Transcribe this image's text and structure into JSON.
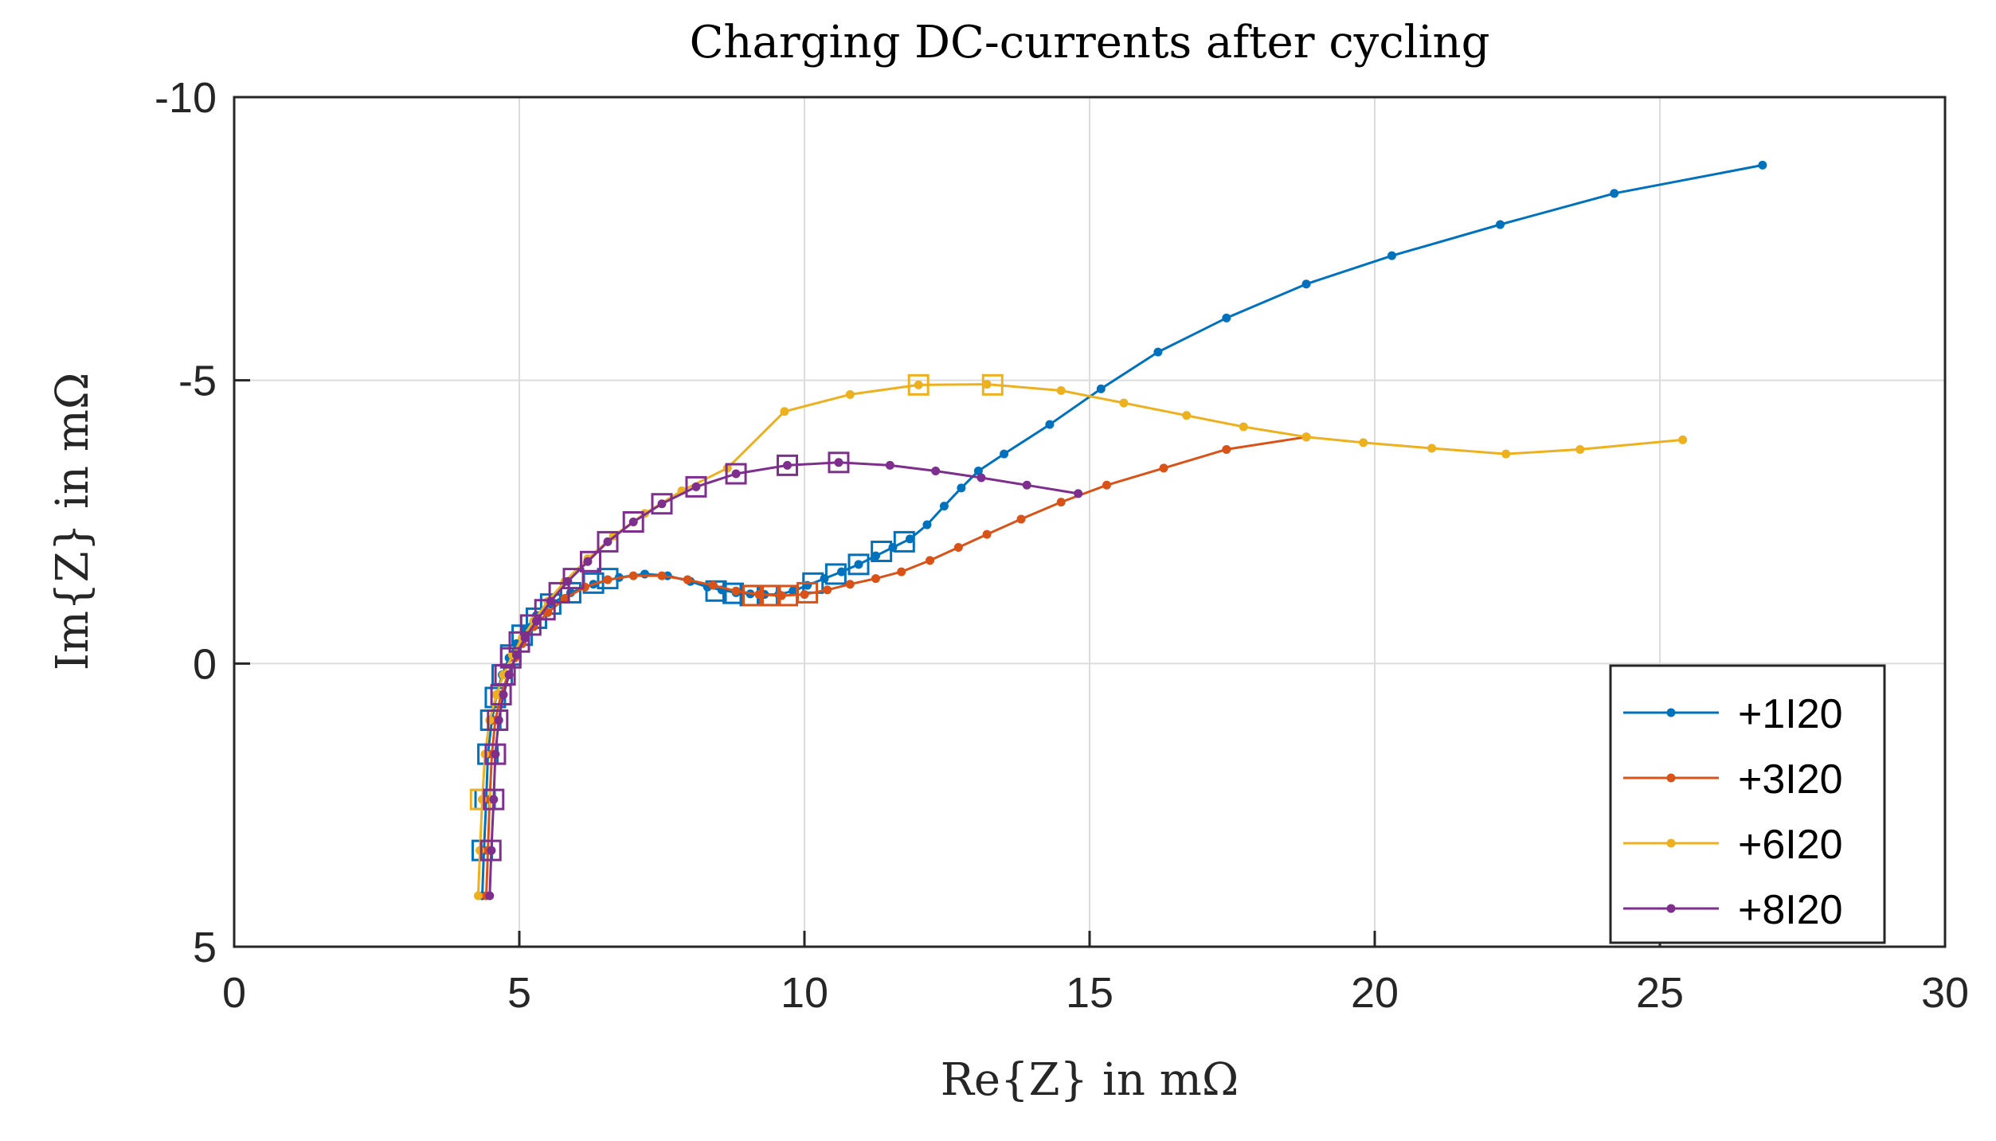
{
  "chart_data": {
    "type": "line",
    "title": "Charging DC-currents after cycling",
    "xlabel": "Re{Z} in mΩ",
    "ylabel": "Im{Z} in mΩ",
    "xlim": [
      0,
      30
    ],
    "ylim": [
      5,
      -10
    ],
    "y_reversed": true,
    "xticks": [
      0,
      5,
      10,
      15,
      20,
      25,
      30
    ],
    "yticks": [
      -10,
      -5,
      0,
      5
    ],
    "xtick_labels": [
      "0",
      "5",
      "10",
      "15",
      "20",
      "25",
      "30"
    ],
    "ytick_labels": [
      "-10",
      "-5",
      "0",
      "5"
    ],
    "grid": true,
    "legend_position": "bottom-right",
    "series": [
      {
        "name": "+1I20",
        "color": "#0072BD",
        "points": [
          [
            4.35,
            4.1
          ],
          [
            4.38,
            3.3
          ],
          [
            4.42,
            2.4
          ],
          [
            4.45,
            1.6
          ],
          [
            4.52,
            1.0
          ],
          [
            4.6,
            0.55
          ],
          [
            4.7,
            0.2
          ],
          [
            4.82,
            -0.1
          ],
          [
            4.95,
            -0.35
          ],
          [
            5.1,
            -0.6
          ],
          [
            5.3,
            -0.85
          ],
          [
            5.55,
            -1.05
          ],
          [
            5.9,
            -1.25
          ],
          [
            6.3,
            -1.4
          ],
          [
            6.75,
            -1.52
          ],
          [
            7.2,
            -1.58
          ],
          [
            7.6,
            -1.55
          ],
          [
            8.0,
            -1.45
          ],
          [
            8.3,
            -1.35
          ],
          [
            8.55,
            -1.3
          ],
          [
            8.8,
            -1.25
          ],
          [
            9.05,
            -1.23
          ],
          [
            9.3,
            -1.22
          ],
          [
            9.55,
            -1.22
          ],
          [
            9.8,
            -1.28
          ],
          [
            10.05,
            -1.38
          ],
          [
            10.35,
            -1.5
          ],
          [
            10.65,
            -1.62
          ],
          [
            10.95,
            -1.75
          ],
          [
            11.25,
            -1.9
          ],
          [
            11.55,
            -2.05
          ],
          [
            11.85,
            -2.2
          ],
          [
            12.15,
            -2.45
          ],
          [
            12.45,
            -2.78
          ],
          [
            12.75,
            -3.1
          ],
          [
            13.05,
            -3.4
          ],
          [
            13.5,
            -3.7
          ],
          [
            14.3,
            -4.22
          ],
          [
            15.2,
            -4.85
          ],
          [
            16.2,
            -5.5
          ],
          [
            17.4,
            -6.1
          ],
          [
            18.8,
            -6.7
          ],
          [
            20.3,
            -7.2
          ],
          [
            22.2,
            -7.75
          ],
          [
            24.2,
            -8.3
          ],
          [
            26.8,
            -8.8
          ]
        ],
        "markers": [
          [
            4.35,
            3.3
          ],
          [
            4.4,
            2.4
          ],
          [
            4.45,
            1.6
          ],
          [
            4.5,
            1.0
          ],
          [
            4.58,
            0.6
          ],
          [
            4.7,
            0.2
          ],
          [
            4.85,
            -0.15
          ],
          [
            5.05,
            -0.5
          ],
          [
            5.3,
            -0.8
          ],
          [
            5.55,
            -1.05
          ],
          [
            5.9,
            -1.25
          ],
          [
            6.3,
            -1.42
          ],
          [
            6.55,
            -1.5
          ],
          [
            8.45,
            -1.28
          ],
          [
            8.75,
            -1.24
          ],
          [
            9.05,
            -1.2
          ],
          [
            9.35,
            -1.2
          ],
          [
            10.15,
            -1.42
          ],
          [
            10.55,
            -1.58
          ],
          [
            10.95,
            -1.75
          ],
          [
            11.35,
            -1.98
          ],
          [
            11.75,
            -2.15
          ]
        ]
      },
      {
        "name": "+3I20",
        "color": "#D95319",
        "points": [
          [
            4.42,
            4.1
          ],
          [
            4.45,
            3.3
          ],
          [
            4.48,
            2.4
          ],
          [
            4.52,
            1.6
          ],
          [
            4.58,
            1.0
          ],
          [
            4.68,
            0.55
          ],
          [
            4.8,
            0.2
          ],
          [
            4.92,
            -0.1
          ],
          [
            5.05,
            -0.35
          ],
          [
            5.25,
            -0.65
          ],
          [
            5.5,
            -0.9
          ],
          [
            5.8,
            -1.15
          ],
          [
            6.15,
            -1.35
          ],
          [
            6.55,
            -1.48
          ],
          [
            7.0,
            -1.55
          ],
          [
            7.5,
            -1.55
          ],
          [
            7.95,
            -1.48
          ],
          [
            8.4,
            -1.38
          ],
          [
            8.8,
            -1.28
          ],
          [
            9.2,
            -1.22
          ],
          [
            9.6,
            -1.2
          ],
          [
            10.0,
            -1.22
          ],
          [
            10.4,
            -1.3
          ],
          [
            10.8,
            -1.4
          ],
          [
            11.25,
            -1.5
          ],
          [
            11.7,
            -1.62
          ],
          [
            12.2,
            -1.82
          ],
          [
            12.7,
            -2.05
          ],
          [
            13.2,
            -2.28
          ],
          [
            13.8,
            -2.55
          ],
          [
            14.5,
            -2.85
          ],
          [
            15.3,
            -3.15
          ],
          [
            16.3,
            -3.45
          ],
          [
            17.4,
            -3.78
          ],
          [
            18.8,
            -4.0
          ]
        ],
        "markers": [
          [
            9.1,
            -1.2
          ],
          [
            9.4,
            -1.2
          ],
          [
            9.7,
            -1.2
          ],
          [
            10.05,
            -1.25
          ]
        ]
      },
      {
        "name": "+6I20",
        "color": "#EDB120",
        "points": [
          [
            4.28,
            4.1
          ],
          [
            4.31,
            3.3
          ],
          [
            4.35,
            2.4
          ],
          [
            4.4,
            1.6
          ],
          [
            4.48,
            1.0
          ],
          [
            4.6,
            0.55
          ],
          [
            4.72,
            0.2
          ],
          [
            4.88,
            -0.15
          ],
          [
            5.05,
            -0.45
          ],
          [
            5.25,
            -0.75
          ],
          [
            5.5,
            -1.1
          ],
          [
            5.8,
            -1.45
          ],
          [
            6.2,
            -1.85
          ],
          [
            6.65,
            -2.25
          ],
          [
            7.2,
            -2.65
          ],
          [
            7.85,
            -3.05
          ],
          [
            8.65,
            -3.45
          ],
          [
            9.65,
            -4.45
          ],
          [
            10.8,
            -4.75
          ],
          [
            12.0,
            -4.92
          ],
          [
            13.2,
            -4.93
          ],
          [
            14.5,
            -4.82
          ],
          [
            15.6,
            -4.6
          ],
          [
            16.7,
            -4.38
          ],
          [
            17.7,
            -4.18
          ],
          [
            18.8,
            -4.0
          ],
          [
            19.8,
            -3.9
          ],
          [
            21.0,
            -3.8
          ],
          [
            22.3,
            -3.7
          ],
          [
            23.6,
            -3.78
          ],
          [
            25.4,
            -3.95
          ]
        ],
        "markers": [
          [
            4.32,
            2.4
          ],
          [
            12.0,
            -4.92
          ],
          [
            13.3,
            -4.92
          ]
        ]
      },
      {
        "name": "+8I20",
        "color": "#7E2F8E",
        "points": [
          [
            4.48,
            4.1
          ],
          [
            4.51,
            3.3
          ],
          [
            4.55,
            2.4
          ],
          [
            4.58,
            1.6
          ],
          [
            4.64,
            1.0
          ],
          [
            4.72,
            0.55
          ],
          [
            4.82,
            0.2
          ],
          [
            4.95,
            -0.15
          ],
          [
            5.1,
            -0.45
          ],
          [
            5.3,
            -0.75
          ],
          [
            5.55,
            -1.1
          ],
          [
            5.85,
            -1.45
          ],
          [
            6.2,
            -1.8
          ],
          [
            6.55,
            -2.15
          ],
          [
            7.0,
            -2.5
          ],
          [
            7.5,
            -2.82
          ],
          [
            8.1,
            -3.12
          ],
          [
            8.8,
            -3.35
          ],
          [
            9.7,
            -3.5
          ],
          [
            10.6,
            -3.55
          ],
          [
            11.5,
            -3.5
          ],
          [
            12.3,
            -3.4
          ],
          [
            13.1,
            -3.28
          ],
          [
            13.9,
            -3.15
          ],
          [
            14.8,
            -3.0
          ]
        ],
        "markers": [
          [
            4.5,
            3.3
          ],
          [
            4.55,
            2.4
          ],
          [
            4.58,
            1.6
          ],
          [
            4.62,
            1.0
          ],
          [
            4.68,
            0.55
          ],
          [
            4.75,
            0.2
          ],
          [
            4.85,
            -0.1
          ],
          [
            5.0,
            -0.38
          ],
          [
            5.2,
            -0.68
          ],
          [
            5.45,
            -0.95
          ],
          [
            5.7,
            -1.25
          ],
          [
            5.95,
            -1.5
          ],
          [
            6.25,
            -1.8
          ],
          [
            6.55,
            -2.15
          ],
          [
            7.0,
            -2.5
          ],
          [
            7.5,
            -2.82
          ],
          [
            8.1,
            -3.12
          ],
          [
            8.8,
            -3.35
          ],
          [
            9.7,
            -3.5
          ],
          [
            10.6,
            -3.55
          ]
        ]
      }
    ]
  }
}
